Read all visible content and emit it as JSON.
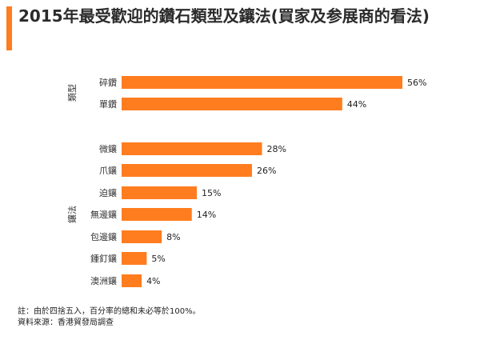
{
  "title": "2015年最受歡迎的鑽石類型及鑲法(買家及参展商的看法)",
  "accent_color": "#ff7d1f",
  "chart_data": {
    "type": "bar",
    "orientation": "horizontal",
    "bar_color": "#ff7d1f",
    "xlim": [
      0,
      56
    ],
    "value_suffix": "%",
    "groups": [
      {
        "label": "類型",
        "categories": [
          "碎鑽",
          "單鑽"
        ],
        "values": [
          56,
          44
        ]
      },
      {
        "label": "鑲法",
        "categories": [
          "微鑲",
          "爪鑲",
          "迫鑲",
          "無邊鑲",
          "包邊鑲",
          "鍾釘鑲",
          "澳洲鑲"
        ],
        "values": [
          28,
          26,
          15,
          14,
          8,
          5,
          4
        ]
      }
    ]
  },
  "footnotes": {
    "note": "註：由於四捨五入，百分率的總和未必等於100%。",
    "source": "資料來源：香港貿發局調查"
  }
}
